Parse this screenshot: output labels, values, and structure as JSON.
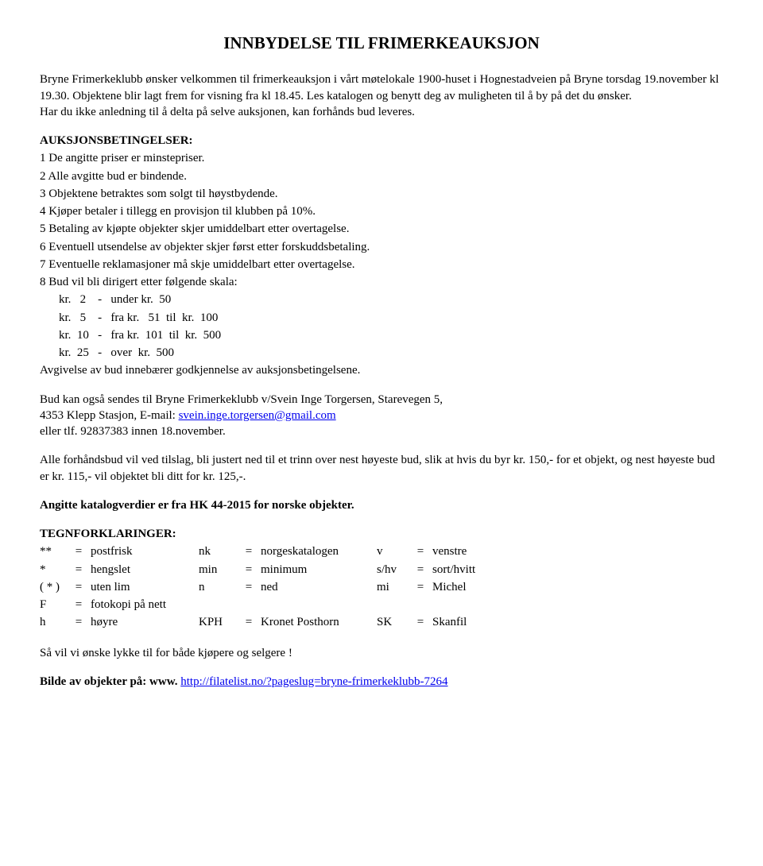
{
  "title": "INNBYDELSE TIL FRIMERKEAUKSJON",
  "intro": "Bryne Frimerkeklubb ønsker velkommen til frimerkeauksjon i vårt møtelokale 1900-huset i Hognestadveien på Bryne torsdag 19.november kl 19.30. Objektene blir lagt frem for visning fra kl 18.45. Les katalogen og benytt deg av muligheten til å by på det du ønsker.",
  "intro_line2": "Har du ikke anledning til å delta på selve auksjonen, kan forhånds bud leveres.",
  "terms_heading": "AUKSJONSBETINGELSER:",
  "terms": {
    "n1": "1  De angitte priser er minstepriser.",
    "n2": "2  Alle avgitte bud er bindende.",
    "n3": "3  Objektene betraktes som solgt til høystbydende.",
    "n4": "4  Kjøper betaler i tillegg en provisjon til klubben på 10%.",
    "n5": "5  Betaling av kjøpte objekter skjer umiddelbart etter overtagelse.",
    "n6": "6  Eventuell utsendelse av objekter skjer først etter forskuddsbetaling.",
    "n7": "7  Eventuelle reklamasjoner må skje umiddelbart etter overtagelse.",
    "n8": "8  Bud vil  bli dirigert etter  følgende skala:"
  },
  "scale": {
    "r1": "kr.   2    -   under kr.  50",
    "r2": "kr.   5    -   fra kr.   51  til  kr.  100",
    "r3": "kr.  10   -   fra kr.  101  til  kr.  500",
    "r4": "kr.  25   -   over  kr.  500"
  },
  "terms_footer": "Avgivelse av bud innebærer godkjennelse av auksjonsbetingelsene.",
  "bid_p1": "Bud kan også sendes til Bryne Frimerkeklubb v/Svein Inge Torgersen, Starevegen 5,",
  "bid_p2_pre": "4353 Klepp Stasjon, E-mail: ",
  "bid_email": "svein.inge.torgersen@gmail.com",
  "bid_p3": "eller tlf. 92837383 innen 18.november.",
  "prebid": "Alle forhåndsbud vil ved tilslag, bli justert ned til et trinn over nest høyeste bud, slik at hvis du byr kr. 150,- for et objekt, og nest høyeste bud er kr. 115,-  vil objektet bli ditt for kr. 125,-.",
  "catalog_note": "Angitte katalogverdier er fra HK 44-2015 for norske objekter.",
  "legend_heading": "TEGNFORKLARINGER:",
  "legend": [
    {
      "s1": "**",
      "w1": "postfrisk",
      "s2": "nk",
      "w2": "norgeskatalogen",
      "s3": "v",
      "w3": "venstre"
    },
    {
      "s1": "*",
      "w1": "hengslet",
      "s2": "min",
      "w2": "minimum",
      "s3": "s/hv",
      "w3": "sort/hvitt"
    },
    {
      "s1": "( * )",
      "w1": "uten lim",
      "s2": "n",
      "w2": "ned",
      "s3": "mi",
      "w3": "Michel"
    },
    {
      "s1": "F",
      "w1": "fotokopi på nett",
      "s2": "",
      "w2": "",
      "s3": "",
      "w3": ""
    },
    {
      "s1": "h",
      "w1": "høyre",
      "s2": "KPH",
      "w2": "Kronet Posthorn",
      "s3": "SK",
      "w3": "Skanfil"
    }
  ],
  "closing": "Så vil vi ønske lykke til for både kjøpere og selgere !",
  "picture_pre": "Bilde av objekter på: www. ",
  "picture_link": "http://filatelist.no/?pageslug=bryne-frimerkeklubb-7264"
}
